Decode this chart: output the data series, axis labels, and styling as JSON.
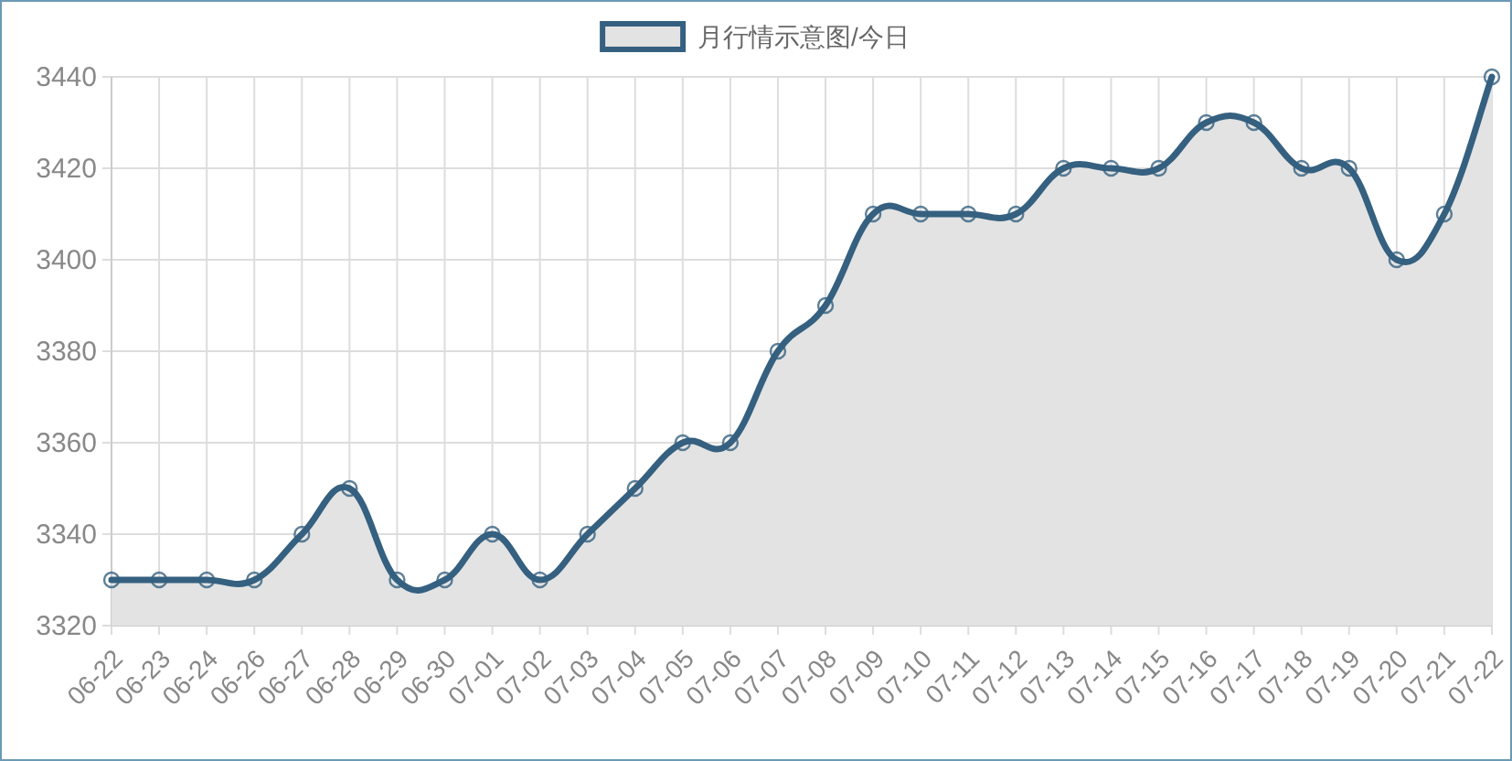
{
  "chart_data": {
    "type": "area",
    "categories": [
      "06-22",
      "06-23",
      "06-24",
      "06-26",
      "06-27",
      "06-28",
      "06-29",
      "06-30",
      "07-01",
      "07-02",
      "07-03",
      "07-04",
      "07-05",
      "07-06",
      "07-07",
      "07-08",
      "07-09",
      "07-10",
      "07-11",
      "07-12",
      "07-13",
      "07-14",
      "07-15",
      "07-16",
      "07-17",
      "07-18",
      "07-19",
      "07-20",
      "07-21",
      "07-22"
    ],
    "series": [
      {
        "name": "月行情示意图/今日",
        "color": "#356080",
        "values": [
          3330,
          3330,
          3330,
          3330,
          3340,
          3350,
          3330,
          3330,
          3340,
          3330,
          3340,
          3350,
          3360,
          3360,
          3380,
          3390,
          3410,
          3410,
          3410,
          3410,
          3420,
          3420,
          3420,
          3430,
          3430,
          3420,
          3420,
          3400,
          3410,
          3440
        ]
      }
    ],
    "ylim": [
      3320,
      3440
    ],
    "yticks": [
      3320,
      3340,
      3360,
      3380,
      3400,
      3420,
      3440
    ],
    "grid": true,
    "legend": "top",
    "marker": "circle"
  }
}
